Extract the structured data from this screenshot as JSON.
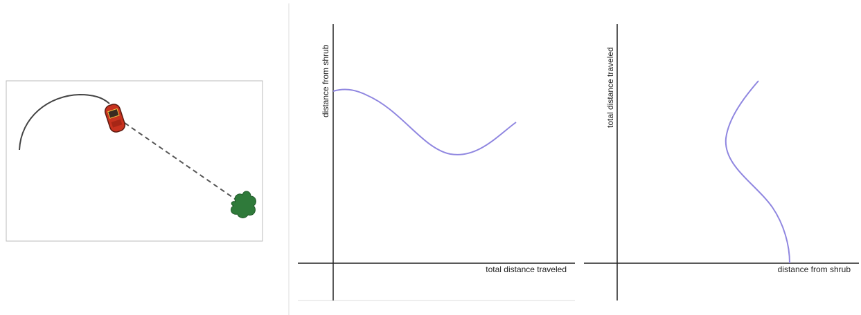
{
  "graph_left": {
    "x_label": "total distance traveled",
    "y_label": "distance from shrub"
  },
  "graph_right": {
    "x_label": "distance from shrub",
    "y_label": "total distance traveled"
  }
}
